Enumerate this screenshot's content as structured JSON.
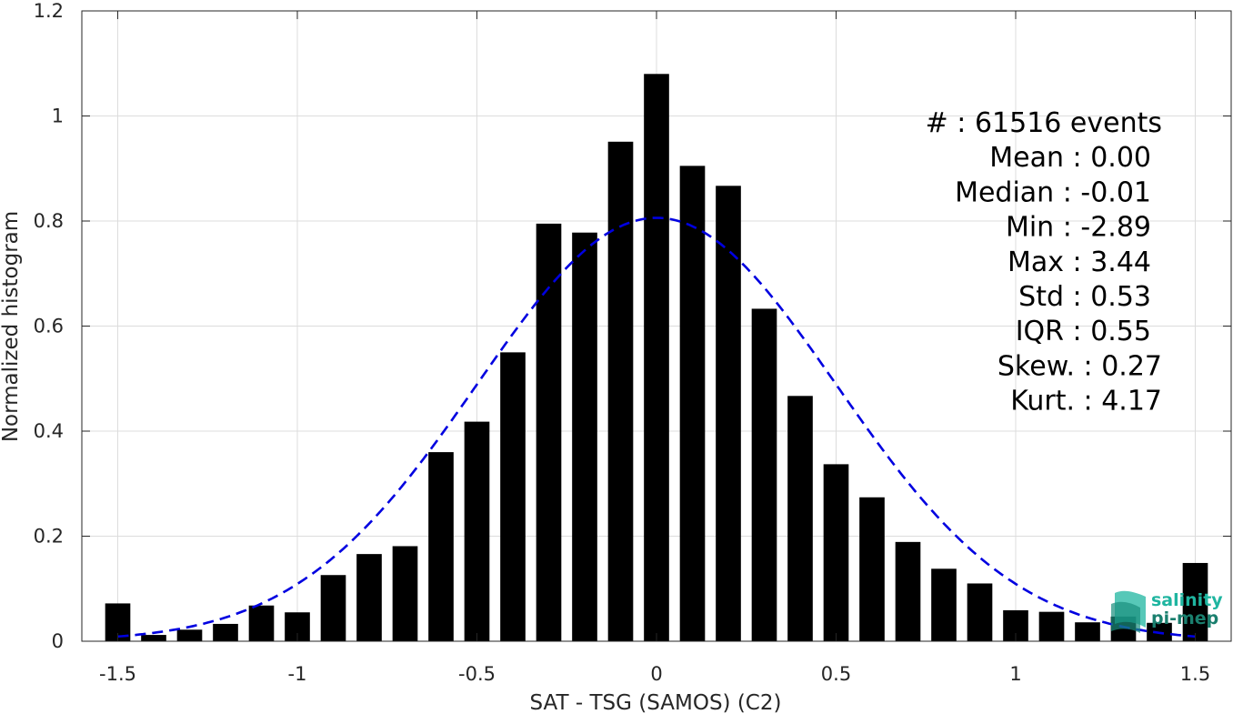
{
  "chart_data": {
    "type": "bar",
    "xlabel": "SAT - TSG (SAMOS) (C2)",
    "ylabel": "Normalized histogram",
    "xlim": [
      -1.6,
      1.6
    ],
    "ylim": [
      0,
      1.2
    ],
    "xticks": [
      -1.5,
      -1,
      -0.5,
      0,
      0.5,
      1,
      1.5
    ],
    "xtick_labels": [
      "-1.5",
      "-1",
      "-0.5",
      "0",
      "0.5",
      "1",
      "1.5"
    ],
    "yticks": [
      0,
      0.2,
      0.4,
      0.6,
      0.8,
      1,
      1.2
    ],
    "ytick_labels": [
      "0",
      "0.2",
      "0.4",
      "0.6",
      "0.8",
      "1",
      "1.2"
    ],
    "grid": true,
    "bar_color": "#000000",
    "bins": [
      -1.5,
      -1.4,
      -1.3,
      -1.2,
      -1.1,
      -1.0,
      -0.9,
      -0.8,
      -0.7,
      -0.6,
      -0.5,
      -0.4,
      -0.3,
      -0.2,
      -0.1,
      0.0,
      0.1,
      0.2,
      0.3,
      0.4,
      0.5,
      0.6,
      0.7,
      0.8,
      0.9,
      1.0,
      1.1,
      1.2,
      1.3,
      1.4,
      1.5
    ],
    "values": [
      0.072,
      0.012,
      0.022,
      0.033,
      0.068,
      0.055,
      0.126,
      0.166,
      0.181,
      0.36,
      0.418,
      0.55,
      0.795,
      0.778,
      0.951,
      1.08,
      0.905,
      0.867,
      0.633,
      0.467,
      0.337,
      0.274,
      0.189,
      0.138,
      0.11,
      0.059,
      0.056,
      0.036,
      0.047,
      0.035,
      0.149
    ],
    "fit_curve": {
      "type": "gaussian",
      "mean": 0.0,
      "std": 0.5,
      "peak": 0.806,
      "color": "#0000e0",
      "style": "dashed"
    },
    "stats": [
      {
        "label": "#  :",
        "value": "61516 events"
      },
      {
        "label": "Mean :",
        "value": "0.00"
      },
      {
        "label": "Median :",
        "value": "-0.01"
      },
      {
        "label": "Min :",
        "value": "-2.89"
      },
      {
        "label": "Max :",
        "value": "3.44"
      },
      {
        "label": "Std :",
        "value": "0.53"
      },
      {
        "label": "IQR :",
        "value": "0.55"
      },
      {
        "label": "Skew. :",
        "value": "0.27"
      },
      {
        "label": "Kurt. :",
        "value": "4.17"
      }
    ]
  },
  "logo": {
    "line1": "salinity",
    "line2": "pi-mep",
    "color1": "#1fb5a0",
    "color2": "#1a7f6e"
  }
}
